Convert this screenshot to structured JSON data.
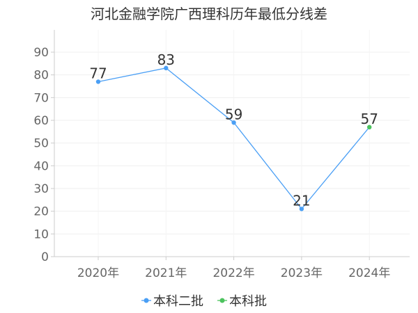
{
  "chart_data": {
    "type": "line",
    "title": "河北金融学院广西理科历年最低分线差",
    "categories": [
      "2020年",
      "2021年",
      "2022年",
      "2023年",
      "2024年"
    ],
    "ylim": [
      0,
      90
    ],
    "yticks": [
      0,
      10,
      20,
      30,
      40,
      50,
      60,
      70,
      80,
      90
    ],
    "grid": true,
    "legend_position": "bottom",
    "series": [
      {
        "name": "本科二批",
        "color": "#4a9ff5",
        "values": [
          77,
          83,
          59,
          21,
          null
        ]
      },
      {
        "name": "本科批",
        "color": "#4cc35e",
        "values": [
          null,
          null,
          null,
          null,
          57
        ]
      }
    ],
    "data_labels": [
      "77",
      "83",
      "59",
      "21",
      "57"
    ]
  }
}
